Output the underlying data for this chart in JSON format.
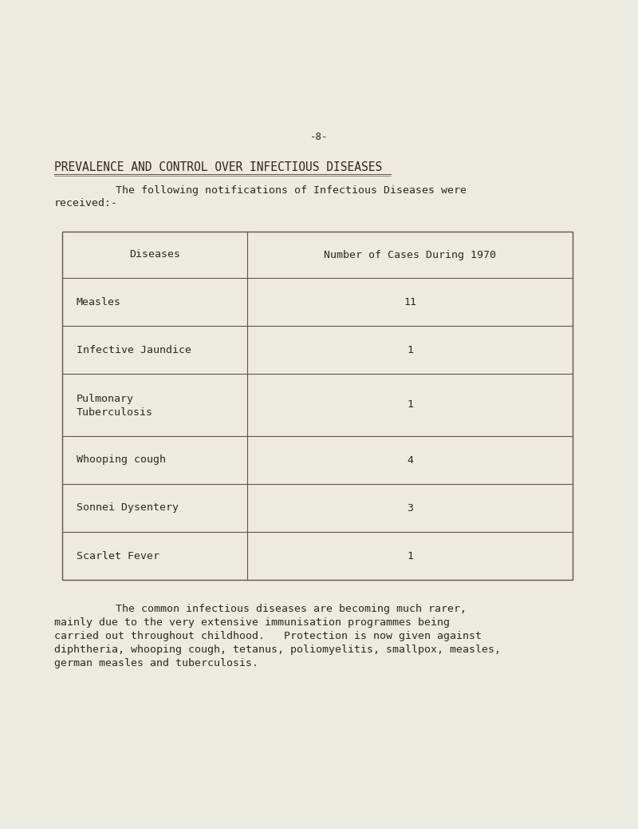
{
  "background_color": "#edeae0",
  "page_number": "-8-",
  "title": "PREVALENCE AND CONTROL OVER INFECTIOUS DISEASES",
  "intro_text_1": "The following notifications of Infectious Diseases were",
  "intro_text_2": "received:-",
  "col1_header": "Diseases",
  "col2_header": "Number of Cases During 1970",
  "diseases": [
    "Measles",
    "Infective Jaundice",
    "Pulmonary\nTuberculosis",
    "Whooping cough",
    "Sonnei Dysentery",
    "Scarlet Fever"
  ],
  "cases": [
    "11",
    "1",
    "1",
    "4",
    "3",
    "1"
  ],
  "footer_line1": "The common infectious diseases are becoming much rarer,",
  "footer_line2": "mainly due to the very extensive immunisation programmes being",
  "footer_line3": "carried out throughout childhood.   Protection is now given against",
  "footer_line4": "diphtheria, whooping cough, tetanus, poliomyelitis, smallpox, measles,",
  "footer_line5": "german measles and tuberculosis.",
  "text_color": "#2a2820",
  "table_line_color": "#5a5550",
  "title_fontsize": 10.5,
  "body_fontsize": 9.5,
  "table_fontsize": 9.5,
  "page_num_fontsize": 9
}
